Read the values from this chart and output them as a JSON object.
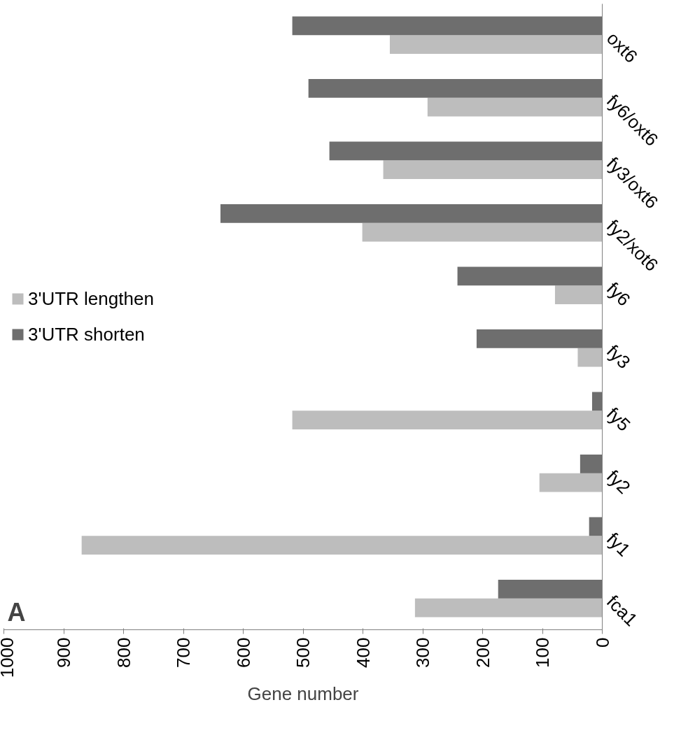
{
  "chart_data": {
    "type": "bar",
    "orientation": "horizontal",
    "xlabel": "Gene number",
    "categories": [
      "oxt6",
      "fy6/oxt6",
      "fy3/oxt6",
      "fy2/xot6",
      "fy6",
      "fy3",
      "fy5",
      "fy2",
      "fy1",
      "fca1"
    ],
    "series": [
      {
        "name": "3'UTR lengthen",
        "color": "#bdbdbd",
        "values": [
          355,
          292,
          366,
          401,
          79,
          41,
          518,
          105,
          870,
          313
        ]
      },
      {
        "name": "3'UTR shorten",
        "color": "#6e6e6e",
        "values": [
          518,
          491,
          456,
          638,
          242,
          210,
          17,
          37,
          22,
          174
        ]
      }
    ],
    "xlim": [
      1000,
      0
    ],
    "xticks": [
      1000,
      900,
      800,
      700,
      600,
      500,
      400,
      300,
      200,
      100,
      0
    ],
    "legend": "left",
    "grid": false,
    "annotations": [
      "A"
    ]
  }
}
